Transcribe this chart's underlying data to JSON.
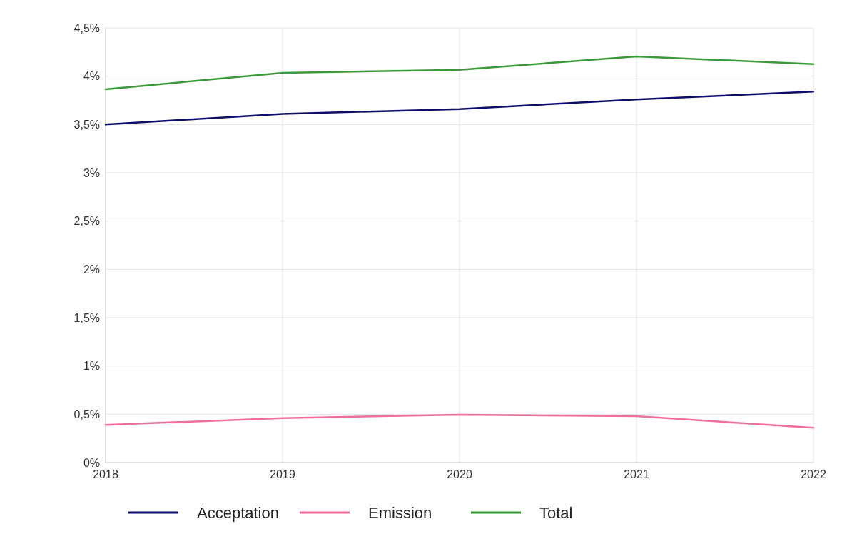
{
  "chart_data": {
    "type": "line",
    "categories": [
      "2018",
      "2019",
      "2020",
      "2021",
      "2022"
    ],
    "series": [
      {
        "name": "Acceptation",
        "color": "#0d0d6b",
        "values": [
          3.5,
          3.61,
          3.66,
          3.76,
          3.84
        ]
      },
      {
        "name": "Emission",
        "color": "#f06e9c",
        "values": [
          0.39,
          0.46,
          0.495,
          0.48,
          0.36
        ]
      },
      {
        "name": "Total",
        "color": "#3a9a3a",
        "values": [
          3.865,
          4.035,
          4.065,
          4.205,
          4.125
        ]
      }
    ],
    "ylim": [
      0,
      4.5
    ],
    "yticks": [
      {
        "value": 0,
        "label": "0%"
      },
      {
        "value": 0.5,
        "label": "0,5%"
      },
      {
        "value": 1,
        "label": "1%"
      },
      {
        "value": 1.5,
        "label": "1,5%"
      },
      {
        "value": 2,
        "label": "2%"
      },
      {
        "value": 2.5,
        "label": "2,5%"
      },
      {
        "value": 3,
        "label": "3%"
      },
      {
        "value": 3.5,
        "label": "3,5%"
      },
      {
        "value": 4,
        "label": "4%"
      },
      {
        "value": 4.5,
        "label": "4,5%"
      }
    ],
    "grid": true,
    "legend": "bottom",
    "marker": "none",
    "line_style": "solid"
  }
}
